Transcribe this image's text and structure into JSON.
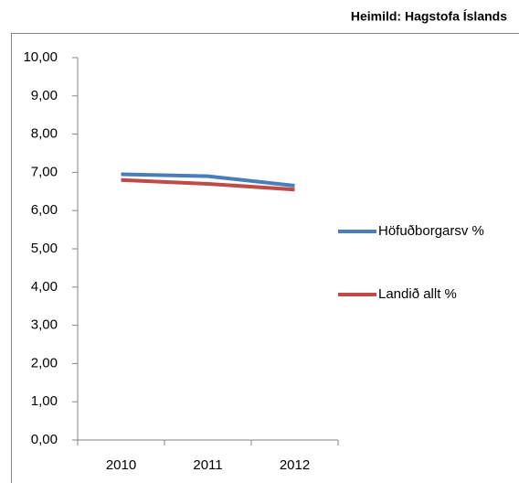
{
  "chart_data": {
    "type": "line",
    "subtitle": "Heimild: Hagstofa Íslands",
    "categories": [
      "2010",
      "2011",
      "2012"
    ],
    "series": [
      {
        "name": "Höfuðborgarsv %",
        "color": "#4a7ebb",
        "values": [
          6.95,
          6.9,
          6.65
        ]
      },
      {
        "name": "Landið allt %",
        "color": "#be4b48",
        "values": [
          6.8,
          6.7,
          6.55
        ]
      }
    ],
    "ylim": [
      0,
      10
    ],
    "yticks": [
      {
        "value": 0,
        "label": "0,00"
      },
      {
        "value": 1,
        "label": "1,00"
      },
      {
        "value": 2,
        "label": "2,00"
      },
      {
        "value": 3,
        "label": "3,00"
      },
      {
        "value": 4,
        "label": "4,00"
      },
      {
        "value": 5,
        "label": "5,00"
      },
      {
        "value": 6,
        "label": "6,00"
      },
      {
        "value": 7,
        "label": "7,00"
      },
      {
        "value": 8,
        "label": "8,00"
      },
      {
        "value": 9,
        "label": "9,00"
      },
      {
        "value": 10,
        "label": "10,00"
      }
    ],
    "grid": false,
    "legend": "right"
  }
}
